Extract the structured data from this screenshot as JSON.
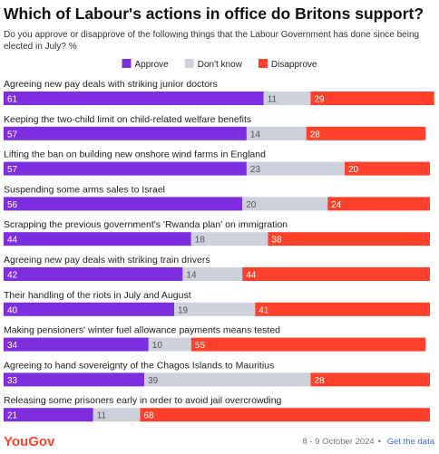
{
  "chart_data": {
    "type": "stacked-bar",
    "title": "Which of Labour's actions in office do Britons support?",
    "subtitle": [
      "Do you approve or disapprove of the following things that the Labour Government has done since being",
      "elected in July? %"
    ],
    "categories": [
      "Agreeing new pay deals with striking junior doctors",
      "Keeping the two-child limit on child-related welfare benefits",
      "Lifting the ban on building new onshore wind farms in England",
      "Suspending some arms sales to Israel",
      "Scrapping the previous government's 'Rwanda plan' on immigration",
      "Agreeing new pay deals with striking train drivers",
      "Their handling of the riots in July and August",
      "Making pensioners' winter fuel allowance payments means tested",
      "Agreeing to hand sovereignty of the Chagos Islands to Mauritius",
      "Releasing some prisoners early in order to avoid jail overcrowding"
    ],
    "series": [
      {
        "name": "Approve",
        "color": "#7d2fe0",
        "label_color": "#ffffff",
        "values": [
          61,
          57,
          57,
          56,
          44,
          42,
          40,
          34,
          33,
          21
        ]
      },
      {
        "name": "Don't know",
        "color": "#cdd1dc",
        "label_color": "#555555",
        "values": [
          11,
          14,
          23,
          20,
          18,
          14,
          19,
          10,
          39,
          11
        ]
      },
      {
        "name": "Disapprove",
        "color": "#ff412c",
        "label_color": "#ffffff",
        "values": [
          29,
          28,
          20,
          24,
          38,
          44,
          41,
          55,
          28,
          68
        ]
      }
    ]
  },
  "footer": {
    "logo": "YouGov",
    "date": "8 - 9 October 2024",
    "link": "Get the data"
  }
}
